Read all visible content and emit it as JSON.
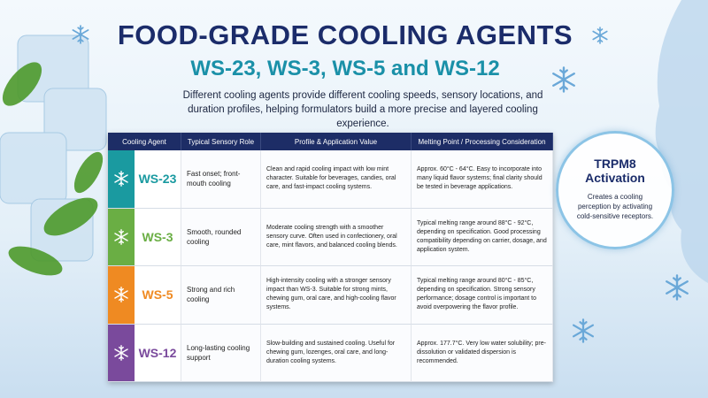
{
  "header": {
    "title": "FOOD-GRADE COOLING AGENTS",
    "subtitle": "WS-23, WS-3, WS-5 and WS-12",
    "description": "Different cooling agents provide different cooling speeds, sensory locations, and duration profiles, helping formulators build a more precise and layered cooling experience."
  },
  "table": {
    "columns": [
      "Cooling Agent",
      "Typical Sensory Role",
      "Profile & Application Value",
      "Melting Point / Processing Consideration"
    ],
    "rows": [
      [
        "WS-23",
        "Fast onset; front-mouth cooling",
        "Clean and rapid cooling impact with low mint character. Suitable for beverages, candies, oral care, and fast-impact cooling systems.",
        "Approx. 60°C - 64°C. Easy to incorporate into many liquid flavor systems; final clarity should be tested in beverage applications."
      ],
      [
        "WS-3",
        "Smooth, rounded cooling",
        "Moderate cooling strength with a smoother sensory curve. Often used in confectionery, oral care, mint flavors, and balanced cooling blends.",
        "Typical melting range around 88°C - 92°C, depending on specification. Good processing compatibility depending on carrier, dosage, and application system."
      ],
      [
        "WS-5",
        "Strong and rich cooling",
        "High-intensity cooling with a stronger sensory impact than WS-3. Suitable for strong mints, chewing gum, oral care, and high-cooling flavor systems.",
        "Typical melting range around 80°C - 85°C, depending on specification. Strong sensory performance; dosage control is important to avoid overpowering the flavor profile."
      ],
      [
        "WS-12",
        "Long-lasting cooling support",
        "Slow-building and sustained cooling. Useful for chewing gum, lozenges, oral care, and long-duration cooling systems.",
        "Approx. 177.7°C. Very low water solubility; pre-dissolution or validated dispersion is recommended."
      ]
    ]
  },
  "callout": {
    "title": "TRPM8 Activation",
    "text": "Creates a cooling perception by activating cold-sensitive receptors."
  }
}
